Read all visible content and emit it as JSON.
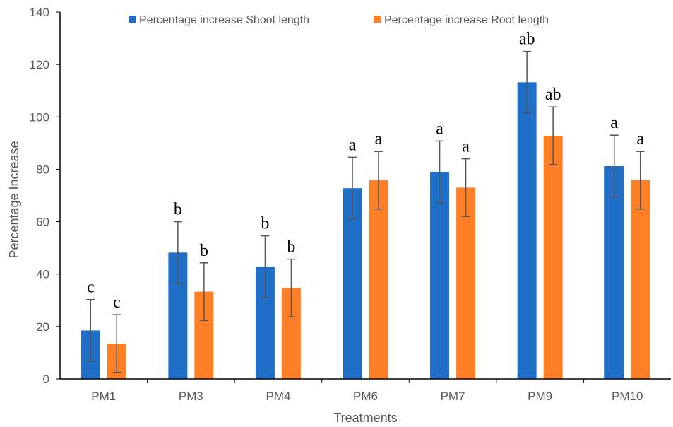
{
  "chart_data": {
    "type": "bar",
    "categories": [
      "PM1",
      "PM3",
      "PM4",
      "PM6",
      "PM7",
      "PM9",
      "PM10"
    ],
    "series": [
      {
        "name": "Percentage increase Shoot length",
        "color": "#1F6FC8",
        "values": [
          18.5,
          48.2,
          42.8,
          72.8,
          79.0,
          113.2,
          81.2
        ],
        "error": [
          11.8,
          11.8,
          11.8,
          11.8,
          11.8,
          11.8,
          11.8
        ],
        "labels": [
          "c",
          "b",
          "b",
          "a",
          "a",
          "ab",
          "a"
        ]
      },
      {
        "name": "Percentage increase Root length",
        "color": "#FF7F27",
        "values": [
          13.5,
          33.3,
          34.7,
          75.8,
          73.0,
          92.8,
          75.8
        ],
        "error": [
          11.0,
          11.0,
          11.0,
          11.0,
          11.0,
          11.0,
          11.0
        ],
        "labels": [
          "c",
          "b",
          "b",
          "a",
          "a",
          "ab",
          "a"
        ]
      }
    ],
    "xlabel": "Treatments",
    "ylabel": "Percentage Increase",
    "ylim": [
      0,
      140
    ],
    "yticks": [
      0,
      20,
      40,
      60,
      80,
      100,
      120,
      140
    ],
    "grid": false,
    "legend_position": "top"
  }
}
